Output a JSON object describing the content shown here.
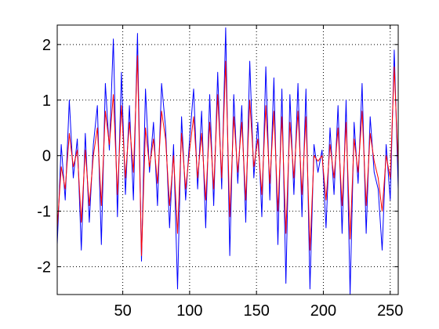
{
  "chart_data": {
    "type": "line",
    "title": "",
    "xlabel": "",
    "ylabel": "",
    "xlim": [
      1,
      256
    ],
    "ylim": [
      -2.5,
      2.35
    ],
    "x_ticks": [
      50,
      100,
      150,
      200,
      250
    ],
    "x_tick_labels": [
      "50",
      "100",
      "150",
      "200",
      "250"
    ],
    "y_ticks": [
      -2,
      -1,
      0,
      1,
      2
    ],
    "y_tick_labels": [
      "-2",
      "-1",
      "0",
      "1",
      "2"
    ],
    "grid": true,
    "legend": "none",
    "series": [
      {
        "color": "#0000ff",
        "x": [
          1,
          4,
          7,
          10,
          13,
          16,
          19,
          22,
          25,
          28,
          31,
          34,
          37,
          40,
          43,
          46,
          49,
          52,
          55,
          58,
          61,
          64,
          67,
          70,
          73,
          76,
          79,
          82,
          85,
          88,
          91,
          94,
          97,
          100,
          103,
          106,
          109,
          112,
          115,
          118,
          121,
          124,
          127,
          130,
          133,
          136,
          139,
          142,
          145,
          148,
          151,
          154,
          157,
          160,
          163,
          166,
          169,
          172,
          175,
          178,
          181,
          184,
          187,
          190,
          193,
          196,
          199,
          202,
          205,
          208,
          211,
          214,
          217,
          220,
          223,
          226,
          229,
          232,
          235,
          238,
          241,
          244,
          247,
          250,
          253,
          256
        ],
        "values": [
          -1.6,
          0.2,
          -0.8,
          1.0,
          -0.4,
          0.3,
          -1.7,
          0.4,
          -1.2,
          0.2,
          0.9,
          -1.6,
          1.3,
          0.1,
          2.1,
          -1.1,
          1.5,
          -0.7,
          0.9,
          -0.8,
          2.2,
          -1.9,
          1.2,
          -0.3,
          0.6,
          -0.9,
          1.3,
          0.5,
          -1.3,
          0.2,
          -2.4,
          0.7,
          -0.8,
          0.3,
          1.2,
          -0.6,
          0.8,
          -1.3,
          1.1,
          -0.9,
          1.5,
          -0.6,
          2.3,
          -1.8,
          1.1,
          -0.5,
          0.9,
          -1.2,
          1.7,
          -0.4,
          0.6,
          -1.1,
          1.6,
          -0.8,
          1.4,
          -1.6,
          1.2,
          -2.3,
          1.1,
          -0.7,
          1.3,
          -1.1,
          1.2,
          -2.4,
          0.2,
          -0.3,
          0.1,
          -1.3,
          0.5,
          -0.7,
          0.9,
          -1.4,
          1.0,
          -2.5,
          0.6,
          -0.5,
          1.3,
          -1.4,
          0.7,
          -0.3,
          -0.6,
          -1.7,
          0.2,
          -0.8,
          1.9,
          -0.6
        ]
      },
      {
        "color": "#ff0000",
        "x": [
          1,
          4,
          7,
          10,
          13,
          16,
          19,
          22,
          25,
          28,
          31,
          34,
          37,
          40,
          43,
          46,
          49,
          52,
          55,
          58,
          61,
          64,
          67,
          70,
          73,
          76,
          79,
          82,
          85,
          88,
          91,
          94,
          97,
          100,
          103,
          106,
          109,
          112,
          115,
          118,
          121,
          124,
          127,
          130,
          133,
          136,
          139,
          142,
          145,
          148,
          151,
          154,
          157,
          160,
          163,
          166,
          169,
          172,
          175,
          178,
          181,
          184,
          187,
          190,
          193,
          196,
          199,
          202,
          205,
          208,
          211,
          214,
          217,
          220,
          223,
          226,
          229,
          232,
          235,
          238,
          241,
          244,
          247,
          250,
          253,
          256
        ],
        "values": [
          -1.3,
          -0.2,
          -0.6,
          0.4,
          -0.2,
          0.1,
          -1.2,
          0.1,
          -0.9,
          0.0,
          0.5,
          -0.9,
          0.8,
          0.2,
          1.1,
          -0.7,
          0.9,
          -0.4,
          0.6,
          -0.3,
          1.8,
          -1.8,
          0.5,
          -0.2,
          0.3,
          -0.5,
          0.8,
          0.3,
          -0.9,
          0.0,
          -1.4,
          0.4,
          -0.6,
          0.1,
          0.7,
          -0.4,
          0.4,
          -0.8,
          0.6,
          -0.6,
          1.1,
          -0.4,
          1.7,
          -1.1,
          0.7,
          -0.3,
          0.6,
          -0.8,
          1.0,
          -0.2,
          0.3,
          -0.7,
          0.9,
          -0.5,
          0.8,
          -1.0,
          0.7,
          -1.4,
          0.6,
          -0.4,
          0.8,
          -0.7,
          0.7,
          -1.7,
          0.0,
          -0.1,
          0.0,
          -0.8,
          0.2,
          -0.4,
          0.5,
          -0.9,
          0.6,
          -1.5,
          0.3,
          -0.3,
          0.8,
          -0.9,
          0.4,
          -0.1,
          -0.4,
          -1.0,
          0.0,
          -0.4,
          1.6,
          -0.2
        ]
      }
    ]
  }
}
